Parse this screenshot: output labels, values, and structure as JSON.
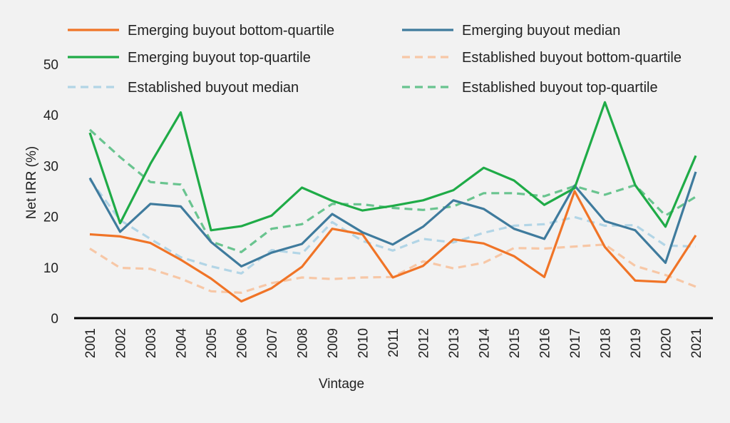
{
  "chart_data": {
    "type": "line",
    "title": "",
    "xlabel": "Vintage",
    "ylabel": "Net IRR (%)",
    "ylim": [
      0,
      50
    ],
    "yticks": [
      0,
      10,
      20,
      30,
      40,
      50
    ],
    "grid": false,
    "legend_position": "top",
    "categories": [
      "2001",
      "2002",
      "2003",
      "2004",
      "2005",
      "2006",
      "2007",
      "2008",
      "2009",
      "2010",
      "2011",
      "2012",
      "2013",
      "2014",
      "2015",
      "2016",
      "2017",
      "2018",
      "2019",
      "2020",
      "2021"
    ],
    "series": [
      {
        "name": "Emerging buyout bottom-quartile",
        "color": "#f07427",
        "dashed": false,
        "values": [
          16.5,
          16.1,
          14.8,
          11.5,
          7.8,
          3.3,
          5.9,
          10.1,
          17.6,
          16.5,
          8.0,
          10.3,
          15.5,
          14.7,
          12.2,
          8.1,
          25.0,
          14.0,
          7.4,
          7.1,
          16.3
        ]
      },
      {
        "name": "Emerging buyout median",
        "color": "#3f7b9d",
        "dashed": false,
        "values": [
          27.6,
          17.0,
          22.5,
          22.0,
          15.0,
          10.2,
          12.9,
          14.6,
          20.5,
          16.9,
          14.5,
          18.0,
          23.2,
          21.5,
          17.6,
          15.6,
          26.1,
          19.1,
          17.3,
          10.9,
          28.8
        ]
      },
      {
        "name": "Emerging buyout top-quartile",
        "color": "#1fab47",
        "dashed": false,
        "values": [
          36.5,
          18.7,
          30.4,
          40.5,
          17.3,
          18.1,
          20.2,
          25.7,
          23.1,
          21.2,
          22.1,
          23.2,
          25.2,
          29.6,
          27.1,
          22.3,
          25.6,
          42.5,
          26.2,
          18.0,
          32.0
        ]
      },
      {
        "name": "Established buyout bottom-quartile",
        "color": "#f7c7a6",
        "dashed": true,
        "values": [
          13.7,
          9.9,
          9.7,
          7.8,
          5.3,
          5.0,
          6.9,
          8.0,
          7.7,
          8.0,
          8.1,
          11.2,
          9.8,
          10.9,
          13.8,
          13.7,
          14.1,
          14.5,
          10.3,
          8.5,
          6.2
        ]
      },
      {
        "name": "Established buyout median",
        "color": "#b2d5e6",
        "dashed": true,
        "values": [
          27.3,
          19.3,
          15.6,
          12.0,
          10.2,
          8.8,
          13.4,
          12.7,
          18.9,
          15.2,
          13.3,
          15.6,
          14.9,
          16.8,
          18.2,
          18.5,
          19.9,
          18.2,
          18.3,
          14.3,
          14.1
        ]
      },
      {
        "name": "Established buyout top-quartile",
        "color": "#69c48f",
        "dashed": true,
        "values": [
          37.1,
          31.7,
          26.8,
          26.3,
          15.1,
          13.0,
          17.6,
          18.5,
          22.5,
          22.4,
          21.7,
          21.3,
          22.0,
          24.6,
          24.6,
          24.0,
          26.0,
          24.3,
          26.2,
          20.2,
          23.9
        ]
      }
    ]
  }
}
